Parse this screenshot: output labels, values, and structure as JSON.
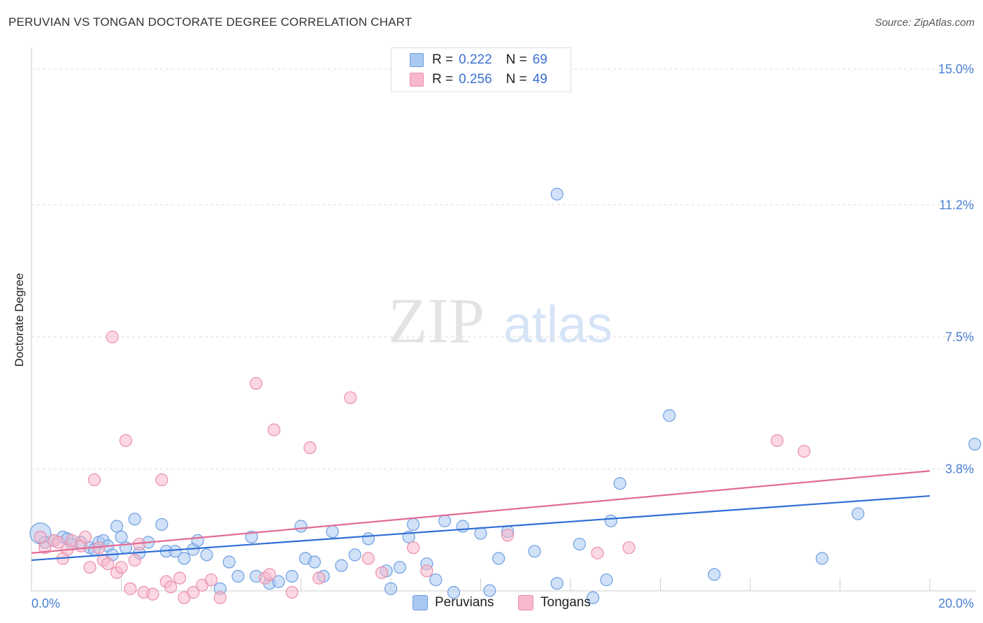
{
  "title": "PERUVIAN VS TONGAN DOCTORATE DEGREE CORRELATION CHART",
  "source": "Source: ZipAtlas.com",
  "watermark": {
    "zip": "ZIP",
    "atlas": "atlas"
  },
  "legend": {
    "rows": [
      {
        "r_label": "R =",
        "r_value": "0.222",
        "n_label": "N =",
        "n_value": "69"
      },
      {
        "r_label": "R =",
        "r_value": "0.256",
        "n_label": "N =",
        "n_value": "49"
      }
    ]
  },
  "bottom_legend": {
    "peruvians": "Peruvians",
    "tongans": "Tongans"
  },
  "colors": {
    "blue_fill": "#a9c8f2",
    "blue_stroke": "#6f9fe0",
    "blue_line": "#2f6fd6",
    "pink_fill": "#f7b8cb",
    "pink_stroke": "#ea8fab",
    "pink_line": "#e36b95",
    "tick_text": "#4a7fd4",
    "grid": "#dddddd"
  },
  "chart_data": {
    "type": "scatter",
    "title": "PERUVIAN VS TONGAN DOCTORATE DEGREE CORRELATION CHART",
    "xlabel": "",
    "ylabel": "Doctorate Degree",
    "xlim": [
      0,
      20
    ],
    "ylim": [
      0,
      15
    ],
    "x_tick_labels": [
      "0.0%",
      "20.0%"
    ],
    "y_ticks": [
      3.8,
      7.5,
      11.2,
      15.0
    ],
    "y_tick_labels": [
      "3.8%",
      "7.5%",
      "11.2%",
      "15.0%"
    ],
    "grid": "horizontal dashed",
    "series": [
      {
        "name": "Peruvians",
        "R": 0.222,
        "N": 69,
        "trend": {
          "x": [
            0,
            20
          ],
          "y": [
            1.25,
            3.05
          ]
        },
        "points": [
          [
            0.2,
            2.0
          ],
          [
            0.3,
            1.75
          ],
          [
            0.5,
            1.8
          ],
          [
            0.7,
            1.9
          ],
          [
            0.8,
            1.85
          ],
          [
            0.9,
            1.7
          ],
          [
            1.1,
            1.75
          ],
          [
            1.3,
            1.6
          ],
          [
            1.4,
            1.55
          ],
          [
            1.5,
            1.75
          ],
          [
            1.6,
            1.8
          ],
          [
            1.7,
            1.65
          ],
          [
            1.8,
            1.4
          ],
          [
            1.9,
            2.2
          ],
          [
            2.0,
            1.9
          ],
          [
            2.1,
            1.6
          ],
          [
            2.3,
            2.4
          ],
          [
            2.4,
            1.45
          ],
          [
            2.6,
            1.75
          ],
          [
            2.9,
            2.25
          ],
          [
            3.0,
            1.5
          ],
          [
            3.2,
            1.5
          ],
          [
            3.4,
            1.3
          ],
          [
            3.6,
            1.55
          ],
          [
            3.7,
            1.8
          ],
          [
            3.9,
            1.4
          ],
          [
            4.2,
            0.45
          ],
          [
            4.4,
            1.2
          ],
          [
            4.6,
            0.8
          ],
          [
            4.9,
            1.9
          ],
          [
            5.0,
            0.8
          ],
          [
            5.3,
            0.6
          ],
          [
            5.5,
            0.65
          ],
          [
            5.8,
            0.8
          ],
          [
            6.0,
            2.2
          ],
          [
            6.1,
            1.3
          ],
          [
            6.3,
            1.2
          ],
          [
            6.5,
            0.8
          ],
          [
            6.7,
            2.05
          ],
          [
            6.9,
            1.1
          ],
          [
            7.2,
            1.4
          ],
          [
            7.5,
            1.85
          ],
          [
            7.9,
            0.95
          ],
          [
            8.0,
            0.45
          ],
          [
            8.2,
            1.05
          ],
          [
            8.4,
            1.9
          ],
          [
            8.5,
            2.25
          ],
          [
            8.8,
            1.15
          ],
          [
            9.0,
            0.7
          ],
          [
            9.2,
            2.35
          ],
          [
            9.4,
            0.35
          ],
          [
            9.6,
            2.2
          ],
          [
            10.0,
            2.0
          ],
          [
            10.2,
            0.4
          ],
          [
            10.4,
            1.3
          ],
          [
            10.6,
            2.05
          ],
          [
            11.2,
            1.5
          ],
          [
            11.7,
            11.5
          ],
          [
            11.7,
            0.6
          ],
          [
            12.2,
            1.7
          ],
          [
            12.5,
            0.2
          ],
          [
            12.8,
            0.7
          ],
          [
            12.9,
            2.35
          ],
          [
            13.1,
            3.4
          ],
          [
            14.2,
            5.3
          ],
          [
            15.2,
            0.85
          ],
          [
            17.6,
            1.3
          ],
          [
            18.4,
            2.55
          ],
          [
            21.0,
            4.5
          ]
        ]
      },
      {
        "name": "Tongans",
        "R": 0.256,
        "N": 49,
        "trend": {
          "x": [
            0,
            20
          ],
          "y": [
            1.45,
            3.75
          ]
        },
        "points": [
          [
            0.2,
            1.9
          ],
          [
            0.3,
            1.6
          ],
          [
            0.5,
            1.8
          ],
          [
            0.6,
            1.75
          ],
          [
            0.7,
            1.3
          ],
          [
            0.8,
            1.55
          ],
          [
            0.9,
            1.8
          ],
          [
            1.1,
            1.65
          ],
          [
            1.2,
            1.9
          ],
          [
            1.3,
            1.05
          ],
          [
            1.4,
            3.5
          ],
          [
            1.5,
            1.6
          ],
          [
            1.6,
            1.25
          ],
          [
            1.7,
            1.15
          ],
          [
            1.8,
            7.5
          ],
          [
            1.9,
            0.9
          ],
          [
            2.0,
            1.05
          ],
          [
            2.1,
            4.6
          ],
          [
            2.2,
            0.45
          ],
          [
            2.3,
            1.25
          ],
          [
            2.4,
            1.7
          ],
          [
            2.5,
            0.35
          ],
          [
            2.7,
            0.3
          ],
          [
            2.9,
            3.5
          ],
          [
            3.0,
            0.65
          ],
          [
            3.1,
            0.5
          ],
          [
            3.3,
            0.75
          ],
          [
            3.4,
            0.2
          ],
          [
            3.6,
            0.35
          ],
          [
            3.8,
            0.55
          ],
          [
            4.0,
            0.7
          ],
          [
            4.2,
            0.2
          ],
          [
            5.0,
            6.2
          ],
          [
            5.2,
            0.75
          ],
          [
            5.3,
            0.85
          ],
          [
            5.4,
            4.9
          ],
          [
            5.8,
            0.35
          ],
          [
            6.2,
            4.4
          ],
          [
            6.4,
            0.75
          ],
          [
            7.1,
            5.8
          ],
          [
            7.5,
            1.3
          ],
          [
            7.8,
            0.9
          ],
          [
            8.5,
            1.6
          ],
          [
            8.8,
            0.95
          ],
          [
            10.6,
            1.95
          ],
          [
            12.6,
            1.45
          ],
          [
            13.3,
            1.6
          ],
          [
            16.6,
            4.6
          ],
          [
            17.2,
            4.3
          ]
        ]
      }
    ]
  }
}
